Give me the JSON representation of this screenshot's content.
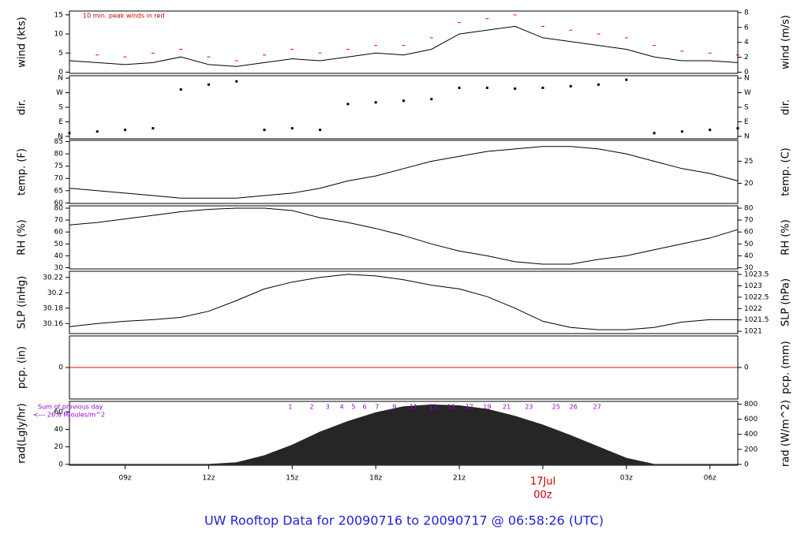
{
  "title": "UW Rooftop Data for 20090716  to  20090717 @ 06:58:26  (UTC)",
  "date_label": {
    "text": "17Jul",
    "x": 24,
    "color": "#cc0000"
  },
  "title_color": "#1f1fdc",
  "chart_data": [
    {
      "type": "line",
      "ylabel": "wind (kts)",
      "y2label": "wind (m/s)",
      "annotation": "10 min. peak winds in red",
      "annotation_color": "#cc0000",
      "x": [
        7,
        8,
        9,
        10,
        11,
        12,
        13,
        14,
        15,
        16,
        17,
        18,
        19,
        20,
        21,
        22,
        23,
        24,
        25,
        26,
        27,
        28,
        29,
        30,
        31
      ],
      "series": [
        {
          "color": "#000000",
          "values": [
            3,
            2.5,
            2,
            2.5,
            4,
            2,
            1.5,
            2.5,
            3.5,
            3,
            4,
            5,
            4.5,
            6,
            10,
            11,
            12,
            9,
            8,
            7,
            6,
            4,
            3,
            3,
            2.5
          ]
        },
        {
          "color": "#ff0000",
          "mode": "markers",
          "values": [
            5,
            4.5,
            4,
            5,
            6,
            4,
            3,
            4.5,
            6,
            5,
            6,
            7,
            7,
            9,
            13,
            14,
            15,
            12,
            11,
            10,
            9,
            7,
            5.5,
            5,
            4.5
          ]
        }
      ],
      "ylim": [
        -0.3,
        16.0
      ],
      "yticks": [
        0,
        5,
        10,
        15
      ],
      "y2lim": [
        -0.15,
        8.2
      ],
      "y2ticks": [
        0,
        2,
        4,
        6,
        8
      ]
    },
    {
      "type": "scatter",
      "ylabel": "dir.",
      "y2label": "dir.",
      "x": [
        7,
        8,
        9,
        10,
        11,
        12,
        13,
        14,
        15,
        16,
        17,
        18,
        19,
        20,
        21,
        22,
        23,
        24,
        25,
        26,
        27,
        28,
        29,
        30,
        31
      ],
      "series": [
        {
          "color": "#000000",
          "values": [
            20,
            30,
            40,
            50,
            290,
            320,
            340,
            40,
            50,
            40,
            200,
            210,
            220,
            230,
            300,
            300,
            295,
            300,
            310,
            320,
            350,
            20,
            30,
            40,
            50
          ]
        }
      ],
      "ylim": [
        -15,
        375
      ],
      "yticks": [
        {
          "value": 0,
          "label": "N"
        },
        {
          "value": 90,
          "label": "E"
        },
        {
          "value": 180,
          "label": "S"
        },
        {
          "value": 270,
          "label": "W"
        },
        {
          "value": 360,
          "label": "N"
        }
      ],
      "y2lim": [
        -15,
        375
      ],
      "y2ticks": [
        {
          "value": 0,
          "label": "N"
        },
        {
          "value": 90,
          "label": "E"
        },
        {
          "value": 180,
          "label": "S"
        },
        {
          "value": 270,
          "label": "W"
        },
        {
          "value": 360,
          "label": "N"
        }
      ]
    },
    {
      "type": "line",
      "ylabel": "temp. (F)",
      "y2label": "temp. (C)",
      "x": [
        7,
        8,
        9,
        10,
        11,
        12,
        13,
        14,
        15,
        16,
        17,
        18,
        19,
        20,
        21,
        22,
        23,
        24,
        25,
        26,
        27,
        28,
        29,
        30,
        31
      ],
      "series": [
        {
          "color": "#000000",
          "values": [
            66,
            65,
            64,
            63,
            62,
            62,
            62,
            63,
            64,
            66,
            69,
            71,
            74,
            77,
            79,
            81,
            82,
            83,
            83,
            82,
            80,
            77,
            74,
            72,
            69
          ]
        }
      ],
      "ylim": [
        59.8,
        85.5
      ],
      "yticks": [
        60,
        65,
        70,
        75,
        80,
        85
      ],
      "y2lim": [
        15.44,
        29.72
      ],
      "y2ticks": [
        20,
        25
      ]
    },
    {
      "type": "line",
      "ylabel": "RH (%)",
      "y2label": "RH (%)",
      "x": [
        7,
        8,
        9,
        10,
        11,
        12,
        13,
        14,
        15,
        16,
        17,
        18,
        19,
        20,
        21,
        22,
        23,
        24,
        25,
        26,
        27,
        28,
        29,
        30,
        31
      ],
      "series": [
        {
          "color": "#000000",
          "values": [
            66,
            68,
            71,
            74,
            77,
            79,
            80,
            80,
            78,
            72,
            68,
            63,
            57,
            50,
            44,
            40,
            35,
            33,
            33,
            37,
            40,
            45,
            50,
            55,
            62
          ]
        }
      ],
      "ylim": [
        29,
        82
      ],
      "yticks": [
        30,
        40,
        50,
        60,
        70,
        80
      ],
      "y2lim": [
        29,
        82
      ],
      "y2ticks": [
        30,
        40,
        50,
        60,
        70,
        80
      ]
    },
    {
      "type": "line",
      "ylabel": "SLP (inHg)",
      "y2label": "SLP (hPa)",
      "x": [
        7,
        8,
        9,
        10,
        11,
        12,
        13,
        14,
        15,
        16,
        17,
        18,
        19,
        20,
        21,
        22,
        23,
        24,
        25,
        26,
        27,
        28,
        29,
        30,
        31
      ],
      "series": [
        {
          "color": "#000000",
          "values": [
            30.156,
            30.16,
            30.163,
            30.165,
            30.168,
            30.176,
            30.19,
            30.205,
            30.214,
            30.22,
            30.224,
            30.222,
            30.217,
            30.21,
            30.205,
            30.195,
            30.18,
            30.163,
            30.155,
            30.152,
            30.152,
            30.155,
            30.162,
            30.165,
            30.165
          ]
        }
      ],
      "ylim": [
        30.147,
        30.228
      ],
      "yticks": [
        30.16,
        30.18,
        30.2,
        30.22
      ],
      "y2lim": [
        1020.9,
        1023.64
      ],
      "y2ticks": [
        1021,
        1021.5,
        1022,
        1022.5,
        1023,
        1023.5
      ]
    },
    {
      "type": "line",
      "ylabel": "pcp. (in)",
      "y2label": "pcp. (mm)",
      "x": [
        7,
        31
      ],
      "series": [
        {
          "color": "#ff0000",
          "values": [
            0,
            0
          ]
        }
      ],
      "ylim": [
        -1,
        1
      ],
      "yticks": [
        0
      ],
      "y2lim": [
        -25.4,
        25.4
      ],
      "y2ticks": [
        0
      ]
    },
    {
      "type": "area",
      "ylabel": "rad(Lgly/hr)",
      "y2label": "rad (W/m^2)",
      "annotations": [
        "Sum of previous day",
        "<--- 26.6 MJoules/m^2"
      ],
      "annotation_color": "#9400d3",
      "hour_marks": {
        "x": [
          14.93,
          15.7,
          16.27,
          16.78,
          17.2,
          17.6,
          18.05,
          18.67,
          19.35,
          20.06,
          20.71,
          21.36,
          22.0,
          22.7,
          23.5,
          24.48,
          25.1,
          25.95
        ],
        "labels": [
          1,
          2,
          3,
          4,
          5,
          6,
          7,
          9,
          11,
          13,
          15,
          17,
          19,
          21,
          23,
          25,
          26,
          27
        ]
      },
      "x": [
        7,
        8,
        9,
        10,
        11,
        12,
        13,
        14,
        15,
        16,
        17,
        18,
        19,
        20,
        21,
        22,
        23,
        24,
        25,
        26,
        27,
        28,
        29,
        30,
        31
      ],
      "series": [
        {
          "color": "#262626",
          "values": [
            0,
            0,
            0,
            0,
            0,
            0,
            2,
            10,
            22,
            37,
            49,
            59,
            66,
            68,
            67,
            63,
            55,
            45,
            33,
            20,
            7,
            0,
            0,
            0,
            0
          ]
        }
      ],
      "ylim": [
        -1,
        72
      ],
      "yticks": [
        0,
        20,
        40,
        60
      ],
      "y2lim": [
        -11.6,
        837
      ],
      "y2ticks": [
        0,
        200,
        400,
        600,
        800
      ],
      "xlim": [
        7,
        31
      ],
      "xticks": [
        {
          "value": 9,
          "label": "09z"
        },
        {
          "value": 12,
          "label": "12z"
        },
        {
          "value": 15,
          "label": "15z"
        },
        {
          "value": 18,
          "label": "18z"
        },
        {
          "value": 21,
          "label": "21z"
        },
        {
          "value": 24,
          "label": "00z"
        },
        {
          "value": 27,
          "label": "03z"
        },
        {
          "value": 30,
          "label": "06z"
        }
      ]
    }
  ]
}
